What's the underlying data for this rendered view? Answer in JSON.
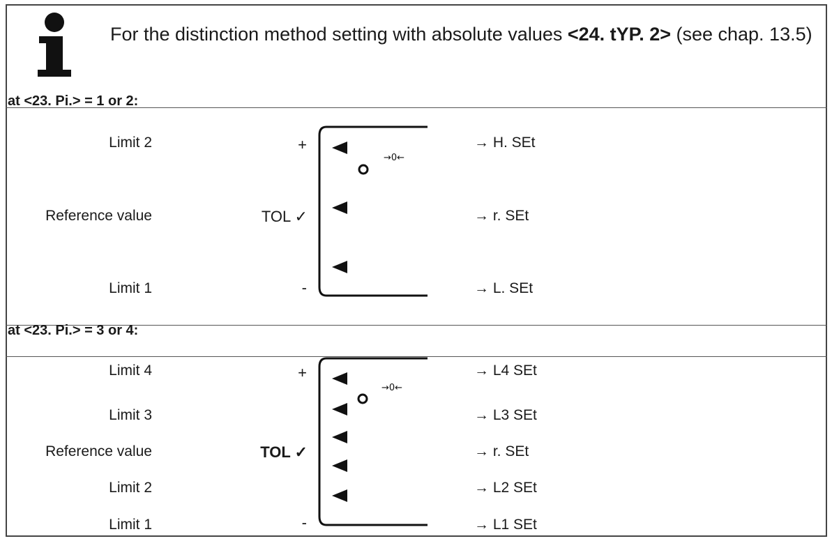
{
  "info_icon": "info-i-icon",
  "note": {
    "text_before": "For the distinction method setting with absolute values ",
    "bold": "<24. tYP. 2>",
    "text_after": " (see chap. 13.5)"
  },
  "section1": {
    "heading": "at <23. Pi.> = 1 or 2:",
    "labels": [
      "Limit 2",
      "Reference value",
      "Limit 1"
    ],
    "signs": {
      "plus": "+",
      "tol": "TOL ✓",
      "minus": "-"
    },
    "zero_symbol": "→0←",
    "outputs": [
      "→ H. SEt",
      "→ r. SEt",
      "→ L. SEt"
    ]
  },
  "section2": {
    "heading": "at <23. Pi.> = 3 or 4:",
    "labels": [
      "Limit 4",
      "Limit 3",
      "Reference value",
      "Limit 2",
      "Limit 1"
    ],
    "signs": {
      "plus": "+",
      "tol": "TOL ✓",
      "minus": "-"
    },
    "zero_symbol": "→0←",
    "outputs": [
      "→ L4 SEt",
      "→ L3 SEt",
      "→ r. SEt",
      "→ L2 SEt",
      "→ L1 SEt"
    ]
  }
}
